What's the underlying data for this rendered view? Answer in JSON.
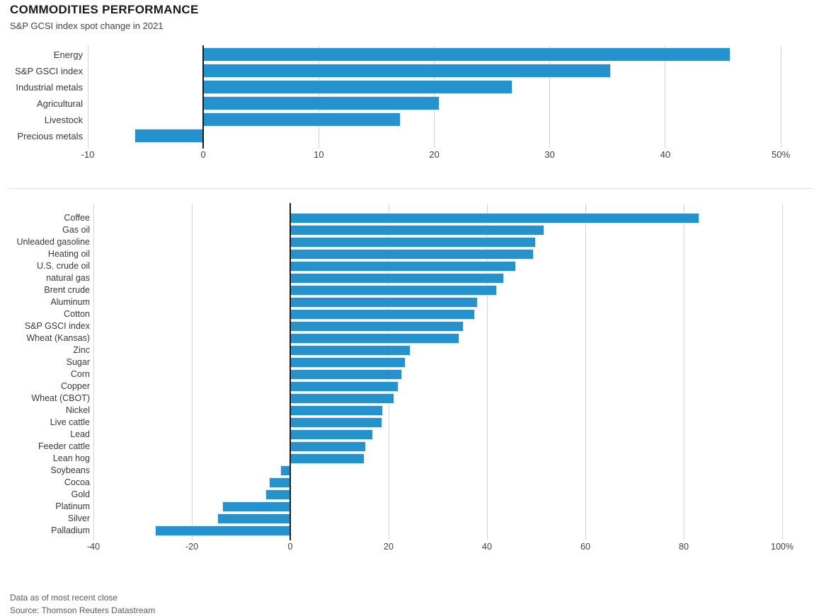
{
  "header": {
    "title": "COMMODITIES PERFORMANCE",
    "subtitle": "S&P GCSI index spot change in 2021"
  },
  "footer": {
    "note": "Data as of most recent close",
    "source": "Source: Thomson Reuters Datastream"
  },
  "colors": {
    "bar": "#2492cd",
    "gridline": "#d2d2d2",
    "zero_axis": "#1a1a1a",
    "divider": "#d9d9d9"
  },
  "chart_data": [
    {
      "type": "bar",
      "orientation": "horizontal",
      "title": "",
      "categories": [
        "Energy",
        "S&P GSCI index",
        "Industrial metals",
        "Agricultural",
        "Livestock",
        "Precious metals"
      ],
      "values": [
        45.6,
        35.2,
        26.7,
        20.4,
        17.0,
        -5.9
      ],
      "unit": "%",
      "xlim": [
        -10,
        50
      ],
      "xticks": [
        -10,
        0,
        10,
        20,
        30,
        40,
        50
      ],
      "xtick_labels": [
        "-10",
        "0",
        "10",
        "20",
        "30",
        "40",
        "50%"
      ],
      "grid": "vertical",
      "legend": "none"
    },
    {
      "type": "bar",
      "orientation": "horizontal",
      "title": "",
      "categories": [
        "Coffee",
        "Gas oil",
        "Unleaded gasoline",
        "Heating oil",
        "U.S. crude oil",
        "natural gas",
        "Brent crude",
        "Aluminum",
        "Cotton",
        "S&P GSCI index",
        "Wheat (Kansas)",
        "Zinc",
        "Sugar",
        "Corn",
        "Copper",
        "Wheat (CBOT)",
        "Nickel",
        "Live cattle",
        "Lead",
        "Feeder cattle",
        "Lean hog",
        "Soybeans",
        "Cocoa",
        "Gold",
        "Platinum",
        "Silver",
        "Palladium"
      ],
      "values": [
        83.0,
        51.5,
        49.8,
        49.4,
        45.8,
        43.3,
        41.9,
        38.0,
        37.4,
        35.1,
        34.2,
        24.3,
        23.3,
        22.6,
        21.9,
        21.0,
        18.7,
        18.5,
        16.7,
        15.3,
        15.0,
        -1.9,
        -4.2,
        -4.9,
        -13.7,
        -14.7,
        -27.3
      ],
      "unit": "%",
      "xlim": [
        -40,
        100
      ],
      "xticks": [
        -40,
        -20,
        0,
        20,
        40,
        60,
        80,
        100
      ],
      "xtick_labels": [
        "-40",
        "-20",
        "0",
        "20",
        "40",
        "60",
        "80",
        "100%"
      ],
      "grid": "vertical",
      "legend": "none"
    }
  ]
}
